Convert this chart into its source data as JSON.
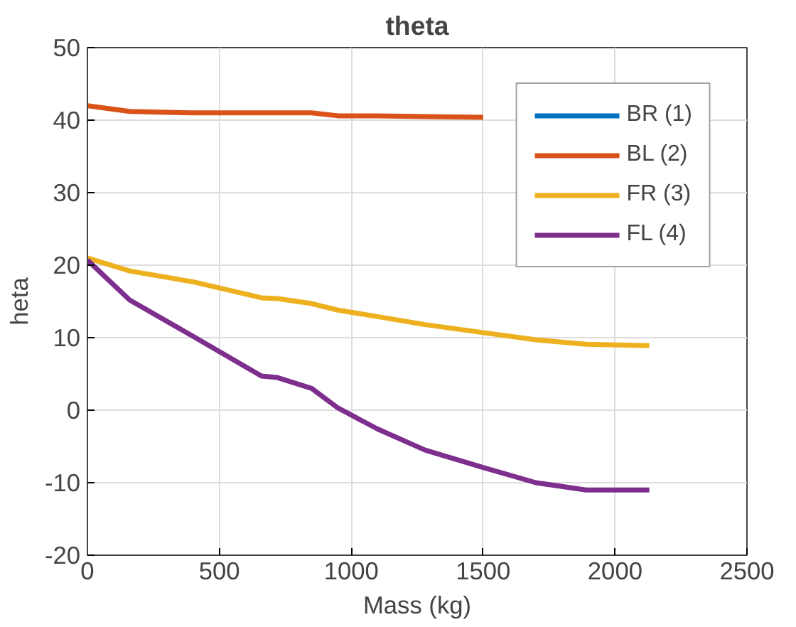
{
  "chart_data": {
    "type": "line",
    "title": "theta",
    "xlabel": "Mass (kg)",
    "ylabel": "heta",
    "x": [
      0,
      160,
      400,
      660,
      720,
      850,
      950,
      1100,
      1280,
      1500,
      1700,
      1890,
      2130
    ],
    "series": [
      {
        "name": "BR (1)",
        "color": "#0072bd",
        "values": [
          null,
          null,
          null,
          null,
          null,
          null,
          null,
          null,
          null,
          null,
          null,
          null,
          null
        ]
      },
      {
        "name": "BL (2)",
        "color": "#d95319",
        "values": [
          42,
          41.2,
          41,
          41,
          41,
          41,
          40.6,
          40.6,
          40.5,
          40.4,
          null,
          null,
          null
        ]
      },
      {
        "name": "FR (3)",
        "color": "#edb120",
        "values": [
          21,
          19.2,
          17.7,
          15.5,
          15.4,
          14.7,
          13.8,
          12.9,
          11.8,
          10.7,
          9.7,
          9.1,
          8.9
        ]
      },
      {
        "name": "FL (4)",
        "color": "#7e2f8e",
        "values": [
          20.7,
          15.2,
          10.2,
          4.7,
          4.5,
          3,
          0.3,
          -2.6,
          -5.5,
          -7.9,
          -10,
          -11,
          -11
        ]
      }
    ],
    "xlim": [
      0,
      2500
    ],
    "xticks": [
      0,
      500,
      1000,
      1500,
      2000,
      2500
    ],
    "ylim": [
      -20,
      50
    ],
    "yticks": [
      -20,
      -10,
      0,
      10,
      20,
      30,
      40,
      50
    ],
    "grid": true,
    "legend": "top right",
    "line_style": "solid",
    "marker": "none"
  }
}
